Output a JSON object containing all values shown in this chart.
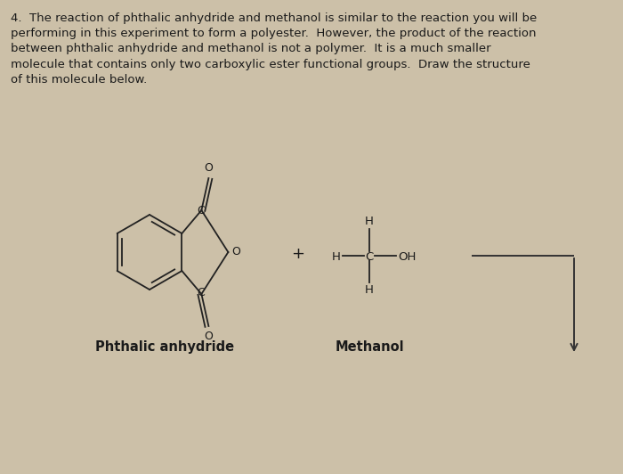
{
  "background_color": "#ccc0a8",
  "text_color": "#1a1a1a",
  "line_color": "#222222",
  "paragraph_text": "4.  The reaction of phthalic anhydride and methanol is similar to the reaction you will be\nperforming in this experiment to form a polyester.  However, the product of the reaction\nbetween phthalic anhydride and methanol is not a polymer.  It is a much smaller\nmolecule that contains only two carboxylic ester functional groups.  Draw the structure\nof this molecule below.",
  "label_phthalic": "Phthalic anhydride",
  "label_methanol": "Methanol",
  "font_size_body": 9.5,
  "font_size_label": 10.5,
  "font_size_atom": 9.0,
  "arrow_color": "#333333"
}
